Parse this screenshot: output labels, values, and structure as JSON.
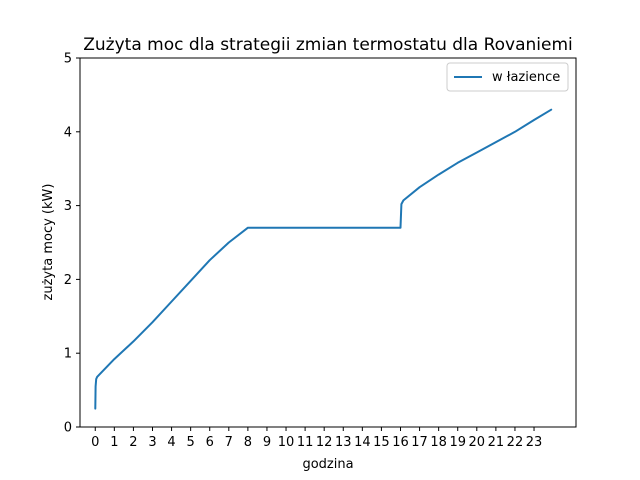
{
  "chart_data": {
    "type": "line",
    "title": "Zużyta moc dla strategii zmian termostatu dla Rovaniemi",
    "xlabel": "godzina",
    "ylabel": "zużyta mocy (kW)",
    "xlim": [
      -0.8,
      25.2
    ],
    "ylim": [
      0,
      5
    ],
    "xticks": [
      0,
      1,
      2,
      3,
      4,
      5,
      6,
      7,
      8,
      9,
      10,
      11,
      12,
      13,
      14,
      15,
      16,
      17,
      18,
      19,
      20,
      21,
      22,
      23
    ],
    "yticks": [
      0,
      1,
      2,
      3,
      4,
      5
    ],
    "grid": false,
    "legend_position": "top-right",
    "colors": {
      "series": "#1f77b4",
      "axis": "#000000"
    },
    "series": [
      {
        "name": "w łazience",
        "x": [
          0,
          0.02,
          0.05,
          0.1,
          1,
          2,
          3,
          4,
          5,
          6,
          7,
          7.9,
          8,
          9,
          10,
          11,
          12,
          13,
          14,
          15,
          15.9,
          16,
          16.05,
          16.15,
          17,
          18,
          19,
          20,
          21,
          22,
          23,
          23.9
        ],
        "values": [
          0.25,
          0.55,
          0.65,
          0.68,
          0.92,
          1.16,
          1.42,
          1.7,
          1.98,
          2.26,
          2.5,
          2.68,
          2.7,
          2.7,
          2.7,
          2.7,
          2.7,
          2.7,
          2.7,
          2.7,
          2.7,
          2.7,
          3.02,
          3.07,
          3.25,
          3.42,
          3.58,
          3.72,
          3.86,
          4.0,
          4.16,
          4.3
        ]
      }
    ]
  }
}
